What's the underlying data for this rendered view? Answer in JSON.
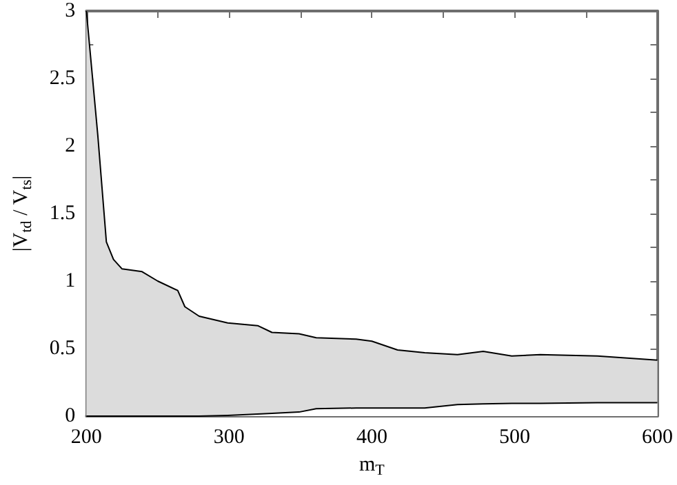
{
  "chart_data": {
    "type": "area",
    "xlabel": "m$_{T}$",
    "ylabel": "|V$_{td}$ / V$_{ts}$|",
    "x": [
      200,
      208,
      214,
      219,
      225,
      239,
      250,
      264,
      269,
      279,
      299,
      320,
      330,
      349,
      361,
      389,
      400,
      418,
      437,
      460,
      478,
      498,
      518,
      558,
      600
    ],
    "series": [
      {
        "color": "#dcdcdc",
        "values": [
          3,
          2.08,
          1.29,
          1.16,
          1.09,
          1.07,
          1.0,
          0.93,
          0.81,
          0.74,
          0.69,
          0.67,
          0.62,
          0.61,
          0.58,
          0.57,
          0.555,
          0.49,
          0.47,
          0.455,
          0.48,
          0.445,
          0.455,
          0.445,
          0.415
        ]
      },
      {
        "color": "#ffffff",
        "values": [
          0,
          0,
          0,
          0,
          0,
          0,
          0,
          0,
          0,
          0,
          0.005,
          0.015,
          0.02,
          0.03,
          0.055,
          0.06,
          0.06,
          0.06,
          0.06,
          0.085,
          0.09,
          0.095,
          0.095,
          0.1,
          0.1
        ]
      }
    ],
    "xlim": [
      200,
      600
    ],
    "xticks": [
      200,
      {
        "value": 250,
        "label": null
      },
      300,
      {
        "value": 350,
        "label": null
      },
      400,
      {
        "value": 450,
        "label": null
      },
      500,
      {
        "value": 550,
        "label": null
      },
      600
    ],
    "ylim": [
      0,
      3
    ],
    "yticks": [
      0,
      {
        "value": 0.25,
        "label": null
      },
      0.5,
      {
        "value": 0.75,
        "label": null
      },
      1,
      {
        "value": 1.25,
        "label": null
      },
      1.5,
      {
        "value": 1.75,
        "label": null
      },
      2,
      {
        "value": 2.25,
        "label": null
      },
      2.5,
      {
        "value": 2.75,
        "label": null
      },
      3
    ],
    "grid": false,
    "marker": "none",
    "line_style": "solid"
  }
}
